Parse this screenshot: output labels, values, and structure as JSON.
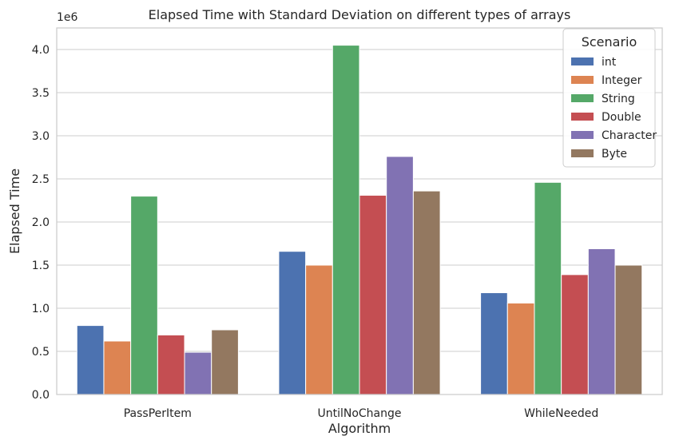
{
  "chart_data": {
    "type": "bar",
    "title": "Elapsed Time with Standard Deviation on different types of arrays",
    "xlabel": "Algorithm",
    "ylabel": "Elapsed Time",
    "y_offset_label": "1e6",
    "ylim": [
      0,
      4.25
    ],
    "y_ticks": [
      0.0,
      0.5,
      1.0,
      1.5,
      2.0,
      2.5,
      3.0,
      3.5,
      4.0
    ],
    "y_tick_labels": [
      "0.0",
      "0.5",
      "1.0",
      "1.5",
      "2.0",
      "2.5",
      "3.0",
      "3.5",
      "4.0"
    ],
    "grid": "horizontal",
    "legend_title": "Scenario",
    "legend_position": "top-right",
    "categories": [
      "PassPerItem",
      "UntilNoChange",
      "WhileNeeded"
    ],
    "series": [
      {
        "name": "int",
        "color": "#4c72b0",
        "values": [
          0.8,
          1.66,
          1.18
        ]
      },
      {
        "name": "Integer",
        "color": "#dd8452",
        "values": [
          0.62,
          1.5,
          1.06
        ]
      },
      {
        "name": "String",
        "color": "#55a868",
        "values": [
          2.3,
          4.05,
          2.46
        ]
      },
      {
        "name": "Double",
        "color": "#c44e52",
        "values": [
          0.69,
          2.31,
          1.39
        ]
      },
      {
        "name": "Character",
        "color": "#8172b3",
        "values": [
          0.49,
          2.76,
          1.69
        ]
      },
      {
        "name": "Byte",
        "color": "#937860",
        "values": [
          0.75,
          2.36,
          1.5
        ]
      }
    ]
  }
}
